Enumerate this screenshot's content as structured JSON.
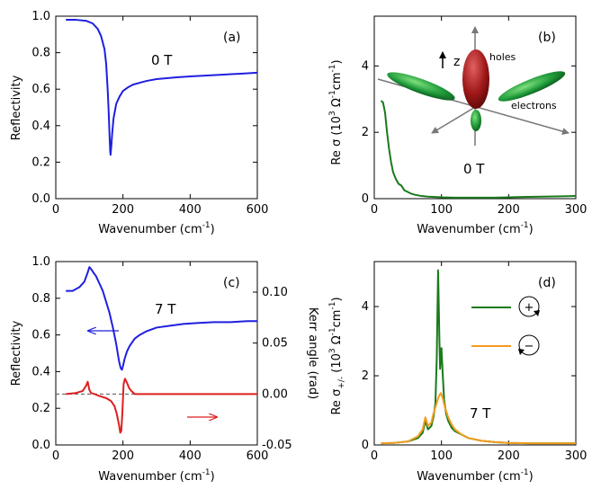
{
  "chart_data": [
    {
      "panel": "(a)",
      "type": "line",
      "annotation": "0 T",
      "xlabel": "Wavenumber (cm",
      "xlabel_sup": "-1",
      "xlabel_end": ")",
      "ylabel": "Reflectivity",
      "xlim": [
        0,
        600
      ],
      "ylim": [
        0,
        1.0
      ],
      "xticks": [
        "0",
        "200",
        "400",
        "600"
      ],
      "yticks": [
        "0.0",
        "0.2",
        "0.4",
        "0.6",
        "0.8",
        "1.0"
      ],
      "series": [
        {
          "color": "#1f1fe0",
          "x": [
            30,
            60,
            90,
            110,
            125,
            135,
            145,
            150,
            155,
            158,
            160,
            162,
            163,
            165,
            168,
            172,
            180,
            190,
            200,
            215,
            230,
            250,
            270,
            300,
            330,
            360,
            400,
            450,
            500,
            550,
            600
          ],
          "y": [
            0.98,
            0.98,
            0.975,
            0.96,
            0.93,
            0.89,
            0.82,
            0.74,
            0.58,
            0.45,
            0.35,
            0.26,
            0.24,
            0.28,
            0.36,
            0.44,
            0.52,
            0.56,
            0.59,
            0.61,
            0.625,
            0.635,
            0.645,
            0.655,
            0.66,
            0.665,
            0.67,
            0.675,
            0.68,
            0.685,
            0.69
          ]
        }
      ]
    },
    {
      "panel": "(b)",
      "type": "line",
      "annotation": "0 T",
      "xlabel": "Wavenumber (cm",
      "xlabel_sup": "-1",
      "xlabel_end": ")",
      "ylabel": "Re σ (10",
      "ylabel_sup": "3",
      "ylabel_mid": " Ω",
      "ylabel_sup2": "-1",
      "ylabel_mid2": "cm",
      "ylabel_sup3": "-1",
      "ylabel_end": ")",
      "xlim": [
        0,
        300
      ],
      "ylim": [
        0,
        5.5
      ],
      "xticks": [
        "0",
        "100",
        "200",
        "300"
      ],
      "yticks": [
        "0",
        "2",
        "4"
      ],
      "inset_labels": {
        "z": "z",
        "holes": "holes",
        "electrons": "electrons"
      },
      "series": [
        {
          "color": "#1a7a1a",
          "x": [
            10,
            13,
            16,
            19,
            22,
            25,
            28,
            32,
            36,
            40,
            45,
            50,
            55,
            60,
            70,
            80,
            90,
            100,
            120,
            150,
            180,
            200,
            220,
            250,
            280,
            300
          ],
          "y": [
            2.95,
            2.9,
            2.6,
            2.0,
            1.5,
            1.1,
            0.8,
            0.6,
            0.45,
            0.4,
            0.25,
            0.2,
            0.15,
            0.12,
            0.08,
            0.06,
            0.05,
            0.04,
            0.03,
            0.03,
            0.03,
            0.04,
            0.05,
            0.06,
            0.07,
            0.08
          ]
        }
      ]
    },
    {
      "panel": "(c)",
      "type": "line",
      "annotation": "7 T",
      "xlabel": "Wavenumber (cm",
      "xlabel_sup": "-1",
      "xlabel_end": ")",
      "ylabel": "Reflectivity",
      "y2label": "Kerr angle (rad)",
      "xlim": [
        0,
        600
      ],
      "ylim": [
        0,
        1.0
      ],
      "y2lim": [
        -0.05,
        0.13
      ],
      "xticks": [
        "0",
        "200",
        "400",
        "600"
      ],
      "yticks": [
        "0.0",
        "0.2",
        "0.4",
        "0.6",
        "0.8",
        "1.0"
      ],
      "y2ticks": [
        "-0.05",
        "0.00",
        "0.05",
        "0.10"
      ],
      "y2tick_values": [
        -0.05,
        0.0,
        0.05,
        0.1
      ],
      "series": [
        {
          "axis": "left",
          "color": "#1f1fe0",
          "x": [
            30,
            50,
            70,
            85,
            95,
            100,
            105,
            112,
            120,
            130,
            140,
            150,
            160,
            170,
            180,
            188,
            193,
            197,
            200,
            205,
            212,
            220,
            235,
            250,
            270,
            300,
            340,
            380,
            420,
            470,
            520,
            570,
            600
          ],
          "y": [
            0.84,
            0.84,
            0.86,
            0.89,
            0.94,
            0.97,
            0.96,
            0.94,
            0.92,
            0.88,
            0.84,
            0.78,
            0.72,
            0.64,
            0.55,
            0.46,
            0.42,
            0.41,
            0.43,
            0.47,
            0.51,
            0.54,
            0.58,
            0.6,
            0.62,
            0.64,
            0.65,
            0.66,
            0.665,
            0.67,
            0.67,
            0.675,
            0.675
          ]
        },
        {
          "axis": "right",
          "color": "#dd1f1f",
          "x": [
            30,
            60,
            80,
            90,
            95,
            100,
            105,
            115,
            130,
            150,
            165,
            175,
            182,
            188,
            192,
            195,
            198,
            202,
            206,
            212,
            218,
            225,
            235,
            260,
            300,
            350,
            400,
            450,
            500,
            550,
            600
          ],
          "y": [
            0.0,
            0.001,
            0.003,
            0.008,
            0.012,
            0.004,
            0.001,
            0.0,
            -0.002,
            -0.004,
            -0.007,
            -0.012,
            -0.02,
            -0.03,
            -0.038,
            -0.036,
            -0.02,
            0.01,
            0.015,
            0.011,
            0.006,
            0.003,
            0.0,
            0.0,
            0.0,
            0.0,
            0.0,
            0.0,
            0.0,
            0.0,
            0.0
          ]
        }
      ],
      "reference_line": {
        "axis": "right",
        "y": 0.0,
        "color": "#555555"
      }
    },
    {
      "panel": "(d)",
      "type": "line",
      "annotation": "7 T",
      "xlabel": "Wavenumber (cm",
      "xlabel_sup": "-1",
      "xlabel_end": ")",
      "ylabel": "Re σ",
      "ylabel_sub": "+/-",
      "ylabel_mid": " (10",
      "ylabel_sup": "3",
      "ylabel_mid2": " Ω",
      "ylabel_sup2": "-1",
      "ylabel_mid3": "cm",
      "ylabel_sup3": "-1",
      "ylabel_end": ")",
      "xlim": [
        0,
        300
      ],
      "ylim": [
        0,
        5.3
      ],
      "xticks": [
        "0",
        "100",
        "200",
        "300"
      ],
      "yticks": [
        "0",
        "2",
        "4"
      ],
      "legend_symbols": [
        "+",
        "−"
      ],
      "series": [
        {
          "color": "#1a7a1a",
          "x": [
            10,
            30,
            50,
            65,
            72,
            76,
            80,
            85,
            88,
            91,
            93,
            95,
            97,
            98,
            100,
            102,
            104,
            107,
            110,
            115,
            120,
            130,
            140,
            160,
            180,
            200,
            230,
            260,
            300
          ],
          "y": [
            0.05,
            0.06,
            0.1,
            0.2,
            0.35,
            0.7,
            0.45,
            0.55,
            0.8,
            1.2,
            2.5,
            5.05,
            3.0,
            2.2,
            2.8,
            2.0,
            1.3,
            0.9,
            0.7,
            0.5,
            0.4,
            0.3,
            0.2,
            0.12,
            0.08,
            0.06,
            0.05,
            0.05,
            0.05
          ]
        },
        {
          "color": "#f39c1f",
          "x": [
            10,
            30,
            50,
            65,
            72,
            76,
            80,
            85,
            88,
            92,
            96,
            99,
            102,
            105,
            110,
            115,
            120,
            130,
            140,
            160,
            180,
            200,
            230,
            260,
            300
          ],
          "y": [
            0.05,
            0.06,
            0.1,
            0.25,
            0.45,
            0.8,
            0.55,
            0.65,
            0.9,
            1.15,
            1.4,
            1.5,
            1.35,
            1.1,
            0.8,
            0.6,
            0.45,
            0.3,
            0.2,
            0.12,
            0.08,
            0.06,
            0.05,
            0.05,
            0.05
          ]
        }
      ]
    }
  ]
}
